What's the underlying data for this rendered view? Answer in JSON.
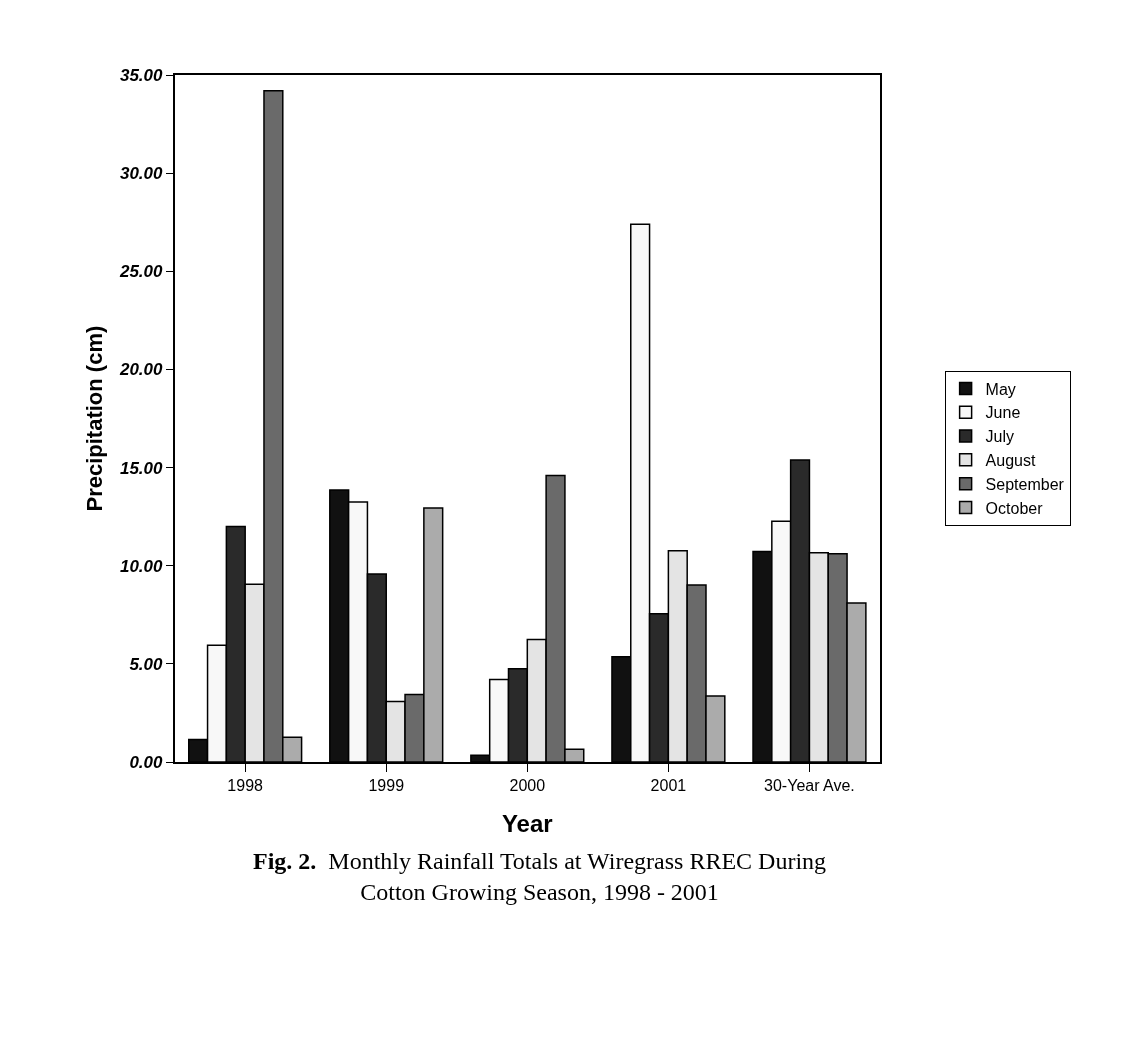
{
  "chart_data": {
    "type": "bar",
    "title": "Monthly Rainfall Totals at Wiregrass RREC During Cotton Growing Season, 1998 - 2001",
    "annotations": [
      "Fig. 2."
    ],
    "xlabel": "Year",
    "ylabel": "Precipitation (cm)",
    "categories": [
      "1998",
      "1999",
      "2000",
      "2001",
      "30-Year Ave."
    ],
    "series": [
      {
        "name": "May",
        "color": "#111111",
        "values": [
          1.15,
          13.86,
          0.35,
          5.36,
          10.73
        ]
      },
      {
        "name": "June",
        "color": "#f8f8f8",
        "values": [
          5.95,
          13.25,
          4.2,
          27.4,
          12.27
        ]
      },
      {
        "name": "July",
        "color": "#2a2a2a",
        "values": [
          12.0,
          9.58,
          4.75,
          7.56,
          15.39
        ]
      },
      {
        "name": "August",
        "color": "#e4e4e4",
        "values": [
          9.06,
          3.09,
          6.25,
          10.77,
          10.66
        ]
      },
      {
        "name": "September",
        "color": "#6a6a6a",
        "values": [
          34.2,
          3.44,
          14.6,
          9.02,
          10.61
        ]
      },
      {
        "name": "October",
        "color": "#ababab",
        "values": [
          1.26,
          12.95,
          0.65,
          3.37,
          8.1
        ]
      }
    ],
    "ylim": [
      0,
      35
    ],
    "yticks": [
      {
        "value": 0,
        "label": "0.00"
      },
      {
        "value": 5,
        "label": "5.00"
      },
      {
        "value": 10,
        "label": "10.00"
      },
      {
        "value": 15,
        "label": "15.00"
      },
      {
        "value": 20,
        "label": "20.00"
      },
      {
        "value": 25,
        "label": "25.00"
      },
      {
        "value": 30,
        "label": "30.00"
      },
      {
        "value": 35,
        "label": "35.00"
      }
    ],
    "legend": "right"
  }
}
